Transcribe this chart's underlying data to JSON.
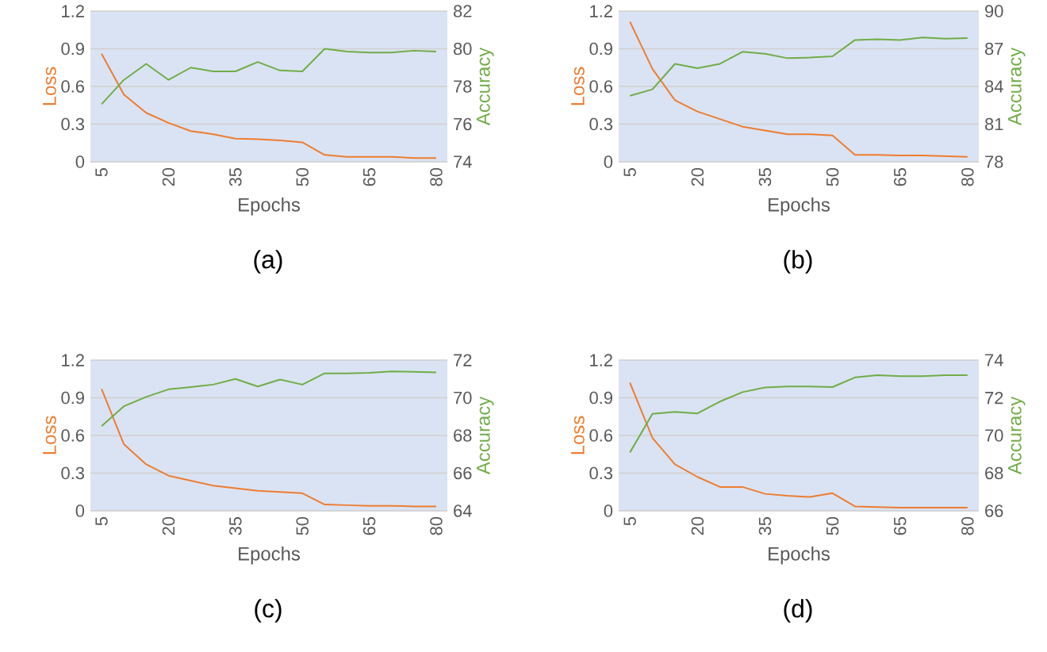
{
  "chart_data": [
    {
      "type": "line",
      "title": "(a)",
      "xlabel": "Epochs",
      "ylabel": "Loss",
      "y2label": "Accuracy",
      "x": [
        5,
        10,
        15,
        20,
        25,
        30,
        35,
        40,
        45,
        50,
        55,
        60,
        65,
        70,
        75,
        80
      ],
      "xlim": [
        2.5,
        82.5
      ],
      "xticks": [
        5,
        20,
        35,
        50,
        65,
        80
      ],
      "ylim": [
        0,
        1.2
      ],
      "yticks": [
        0,
        0.3,
        0.6,
        0.9,
        1.2
      ],
      "y2lim": [
        74,
        82
      ],
      "y2ticks": [
        74,
        76,
        78,
        80,
        82
      ],
      "grid": "y",
      "series": [
        {
          "color": "#ed7d31",
          "values": [
            0.86,
            0.535,
            0.39,
            0.31,
            0.245,
            0.22,
            0.185,
            0.18,
            0.17,
            0.155,
            0.055,
            0.04,
            0.04,
            0.04,
            0.03,
            0.03
          ]
        },
        {
          "color": "#70ad47",
          "axis": "y2",
          "values": [
            77.06,
            78.35,
            79.2,
            78.35,
            79.0,
            78.8,
            78.8,
            79.3,
            78.85,
            78.8,
            80.0,
            79.85,
            79.8,
            79.8,
            79.9,
            79.85
          ]
        }
      ]
    },
    {
      "type": "line",
      "title": "(b)",
      "xlabel": "Epochs",
      "ylabel": "Loss",
      "y2label": "Accuracy",
      "x": [
        5,
        10,
        15,
        20,
        25,
        30,
        35,
        40,
        45,
        50,
        55,
        60,
        65,
        70,
        75,
        80
      ],
      "xlim": [
        2.5,
        82.5
      ],
      "xticks": [
        5,
        20,
        35,
        50,
        65,
        80
      ],
      "ylim": [
        0,
        1.2
      ],
      "yticks": [
        0,
        0.3,
        0.6,
        0.9,
        1.2
      ],
      "y2lim": [
        78,
        90
      ],
      "y2ticks": [
        78,
        81,
        84,
        87,
        90
      ],
      "grid": "y",
      "series": [
        {
          "color": "#ed7d31",
          "values": [
            1.115,
            0.74,
            0.49,
            0.4,
            0.34,
            0.28,
            0.25,
            0.22,
            0.22,
            0.21,
            0.055,
            0.055,
            0.05,
            0.05,
            0.045,
            0.04
          ]
        },
        {
          "color": "#70ad47",
          "axis": "y2",
          "values": [
            83.26,
            83.77,
            85.8,
            85.45,
            85.8,
            86.76,
            86.6,
            86.25,
            86.3,
            86.4,
            87.7,
            87.75,
            87.7,
            87.9,
            87.8,
            87.85
          ]
        }
      ]
    },
    {
      "type": "line",
      "title": "(c)",
      "xlabel": "Epochs",
      "ylabel": "Loss",
      "y2label": "Accuracy",
      "x": [
        5,
        10,
        15,
        20,
        25,
        30,
        35,
        40,
        45,
        50,
        55,
        60,
        65,
        70,
        75,
        80
      ],
      "xlim": [
        2.5,
        82.5
      ],
      "xticks": [
        5,
        20,
        35,
        50,
        65,
        80
      ],
      "ylim": [
        0,
        1.2
      ],
      "yticks": [
        0,
        0.3,
        0.6,
        0.9,
        1.2
      ],
      "y2lim": [
        64,
        72
      ],
      "y2ticks": [
        64,
        66,
        68,
        70,
        72
      ],
      "grid": "y",
      "series": [
        {
          "color": "#ed7d31",
          "values": [
            0.97,
            0.53,
            0.37,
            0.28,
            0.24,
            0.2,
            0.18,
            0.16,
            0.15,
            0.14,
            0.05,
            0.045,
            0.04,
            0.04,
            0.035,
            0.035
          ]
        },
        {
          "color": "#70ad47",
          "axis": "y2",
          "values": [
            68.5,
            69.55,
            70.05,
            70.45,
            70.57,
            70.7,
            71.0,
            70.6,
            70.97,
            70.7,
            71.3,
            71.3,
            71.33,
            71.4,
            71.38,
            71.35
          ]
        }
      ]
    },
    {
      "type": "line",
      "title": "(d)",
      "xlabel": "Epochs",
      "ylabel": "Loss",
      "y2label": "Accuracy",
      "x": [
        5,
        10,
        15,
        20,
        25,
        30,
        35,
        40,
        45,
        50,
        55,
        60,
        65,
        70,
        75,
        80
      ],
      "xlim": [
        2.5,
        82.5
      ],
      "xticks": [
        5,
        20,
        35,
        50,
        65,
        80
      ],
      "ylim": [
        0,
        1.2
      ],
      "yticks": [
        0,
        0.3,
        0.6,
        0.9,
        1.2
      ],
      "y2lim": [
        66,
        74
      ],
      "y2ticks": [
        66,
        68,
        70,
        72,
        74
      ],
      "grid": "y",
      "series": [
        {
          "color": "#ed7d31",
          "values": [
            1.02,
            0.58,
            0.37,
            0.27,
            0.19,
            0.19,
            0.135,
            0.12,
            0.11,
            0.14,
            0.035,
            0.03,
            0.025,
            0.025,
            0.025,
            0.025
          ]
        },
        {
          "color": "#70ad47",
          "axis": "y2",
          "values": [
            69.1,
            71.15,
            71.25,
            71.17,
            71.8,
            72.3,
            72.55,
            72.6,
            72.6,
            72.57,
            73.08,
            73.2,
            73.15,
            73.15,
            73.2,
            73.2
          ]
        }
      ]
    }
  ]
}
